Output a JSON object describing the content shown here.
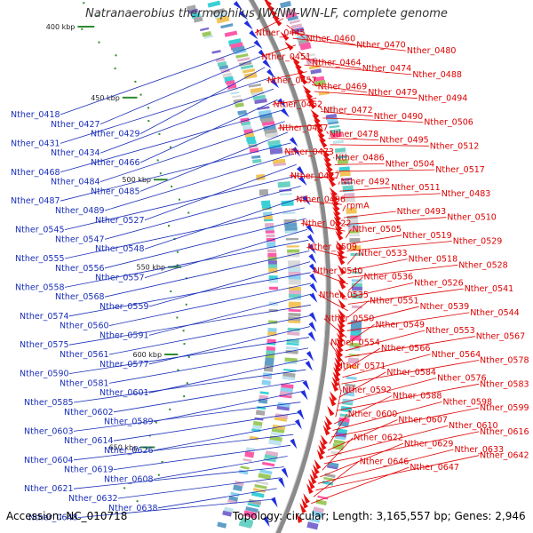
{
  "title": "Natranaerobius thermophilus JW/NM-WN-LF, complete genome",
  "accession_text": "Accession: NC_010718",
  "stats_text": "Topology: circular; Length: 3,165,557 bp; Genes: 2,946",
  "colors": {
    "forward_strand": "#1f2fe0",
    "reverse_strand": "#e81010",
    "backbone": "#8a8a8a",
    "tick": "#2e8b2e",
    "left_label": "#1a2fb8",
    "right_label": "#dd0000"
  },
  "kbp_ticks": [
    "400 kbp",
    "450 kbp",
    "500 kbp",
    "550 kbp",
    "600 kbp",
    "650 kbp"
  ],
  "left_labels": [
    "Nther_0418",
    "Nther_0427",
    "Nther_0429",
    "Nther_0431",
    "Nther_0434",
    "Nther_0466",
    "Nther_0468",
    "Nther_0484",
    "Nther_0485",
    "Nther_0487",
    "Nther_0489",
    "Nther_0527",
    "Nther_0545",
    "Nther_0547",
    "Nther_0548",
    "Nther_0555",
    "Nther_0556",
    "Nther_0557",
    "Nther_0558",
    "Nther_0568",
    "Nther_0559",
    "Nther_0574",
    "Nther_0560",
    "Nther_0591",
    "Nther_0575",
    "Nther_0561",
    "Nther_0577",
    "Nther_0590",
    "Nther_0581",
    "Nther_0601",
    "Nther_0585",
    "Nther_0602",
    "Nther_0589",
    "Nther_0603",
    "Nther_0614",
    "Nther_0626",
    "Nther_0604",
    "Nther_0619",
    "Nther_0608",
    "Nther_0621",
    "Nther_0632",
    "Nther_0638",
    "Nther_0648"
  ],
  "right_labels": [
    "Nther_0445",
    "Nther_0460",
    "Nther_0470",
    "Nther_0480",
    "Nther_0451",
    "Nther_0464",
    "Nther_0474",
    "Nther_0488",
    "Nther_0457",
    "Nther_0469",
    "Nther_0479",
    "Nther_0494",
    "Nther_0462",
    "Nther_0472",
    "Nther_0490",
    "Nther_0506",
    "Nther_0467",
    "Nther_0478",
    "Nther_0495",
    "Nther_0512",
    "Nther_0473",
    "Nther_0486",
    "Nther_0504",
    "Nther_0517",
    "Nther_0477",
    "Nther_0492",
    "Nther_0511",
    "Nther_0483",
    "Nther_0496",
    "rpmA",
    "Nther_0493",
    "Nther_0510",
    "Nther_0522",
    "Nther_0505",
    "Nther_0519",
    "Nther_0529",
    "Nther_0509",
    "Nther_0533",
    "Nther_0518",
    "Nther_0528",
    "Nther_0540",
    "Nther_0536",
    "Nther_0526",
    "Nther_0541",
    "Nther_0535",
    "Nther_0551",
    "Nther_0539",
    "Nther_0544",
    "Nther_0550",
    "Nther_0549",
    "Nther_0553",
    "Nther_0567",
    "Nther_0554",
    "Nther_0566",
    "Nther_0564",
    "Nther_0578",
    "Nther_0571",
    "Nther_0584",
    "Nther_0576",
    "Nther_0583",
    "Nther_0592",
    "Nther_0588",
    "Nther_0598",
    "Nther_0599",
    "Nther_0600",
    "Nther_0607",
    "Nther_0610",
    "Nther_0616",
    "Nther_0622",
    "Nther_0629",
    "Nther_0633",
    "Nther_0642",
    "Nther_0646",
    "Nther_0647"
  ]
}
